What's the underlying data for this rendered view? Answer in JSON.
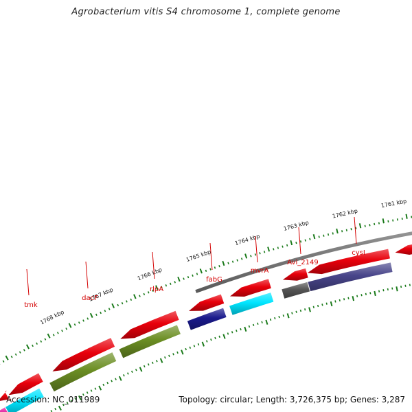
{
  "title": "Agrobacterium vitis S4 chromosome 1, complete genome",
  "footer": {
    "accession": "Accession: NC_011989",
    "summary": "Topology: circular; Length: 3,726,375 bp; Genes: 3,287"
  },
  "ticks": [
    {
      "label": "1768 kbp"
    },
    {
      "label": "1767 kbp"
    },
    {
      "label": "1766 kbp"
    },
    {
      "label": "1765 kbp"
    },
    {
      "label": "1764 kbp"
    },
    {
      "label": "1763 kbp"
    },
    {
      "label": "1762 kbp"
    },
    {
      "label": "1761 kbp"
    }
  ],
  "genes": [
    {
      "name": "tmk"
    },
    {
      "name": "dacF"
    },
    {
      "name": "rlpA"
    },
    {
      "name": "fabG"
    },
    {
      "name": "mvrA"
    },
    {
      "name": "Avi_2149"
    },
    {
      "name": "cysI"
    }
  ],
  "colors": {
    "backbone": "#808080",
    "cds": "#e8000b",
    "tick_marks": "#1a7a1a",
    "label_text": "#d40000",
    "cog_olive": "#6b8e23",
    "cog_cyan": "#00e5ff",
    "cog_navy": "#1a1a8c",
    "cog_slate": "#48458a",
    "cog_gray": "#555555",
    "cog_magenta": "#e0169a"
  }
}
